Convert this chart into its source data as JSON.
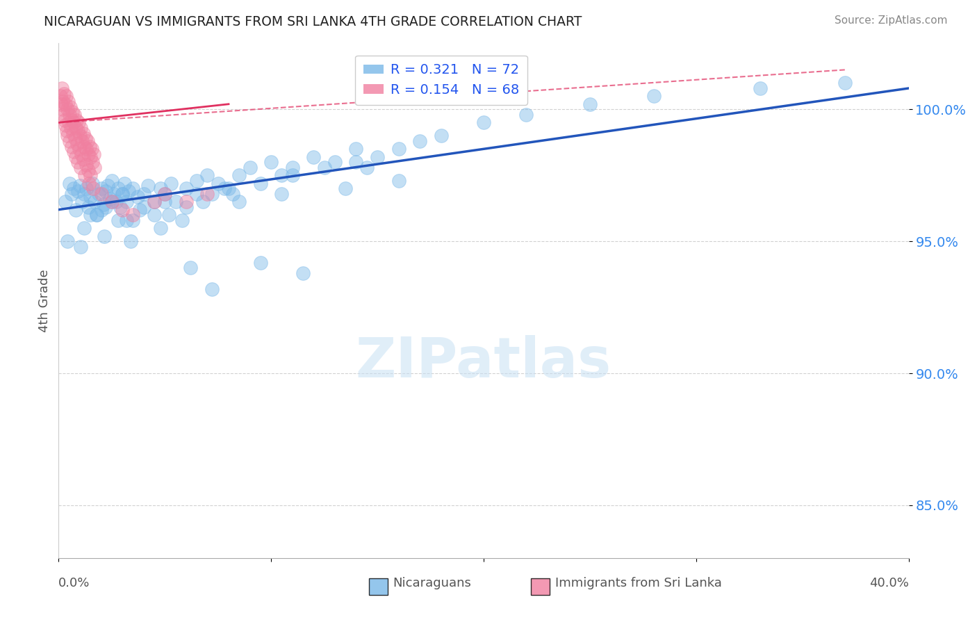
{
  "title": "NICARAGUAN VS IMMIGRANTS FROM SRI LANKA 4TH GRADE CORRELATION CHART",
  "source": "Source: ZipAtlas.com",
  "ylabel": "4th Grade",
  "xlim": [
    0.0,
    40.0
  ],
  "ylim": [
    83.0,
    102.5
  ],
  "yticks": [
    85.0,
    90.0,
    95.0,
    100.0
  ],
  "ytick_labels": [
    "85.0%",
    "90.0%",
    "95.0%",
    "100.0%"
  ],
  "blue_color": "#7ab8e8",
  "pink_color": "#f080a0",
  "blue_line_color": "#2255bb",
  "pink_line_color": "#e03060",
  "blue_scatter_x": [
    0.3,
    0.5,
    0.6,
    0.7,
    0.8,
    0.9,
    1.0,
    1.1,
    1.2,
    1.3,
    1.4,
    1.5,
    1.6,
    1.7,
    1.8,
    1.9,
    2.0,
    2.1,
    2.2,
    2.3,
    2.4,
    2.5,
    2.6,
    2.7,
    2.8,
    2.9,
    3.0,
    3.1,
    3.2,
    3.3,
    3.5,
    3.7,
    4.0,
    4.2,
    4.5,
    4.8,
    5.0,
    5.3,
    5.5,
    6.0,
    6.5,
    7.0,
    7.5,
    8.0,
    8.5,
    9.0,
    10.0,
    10.5,
    11.0,
    12.0,
    13.0,
    14.0,
    14.5,
    15.0,
    16.0,
    17.0,
    18.0,
    20.0,
    22.0,
    25.0,
    28.0,
    33.0,
    37.0,
    0.4,
    1.05,
    2.15,
    3.4,
    5.8,
    9.5,
    11.5,
    7.2,
    6.2
  ],
  "blue_scatter_y": [
    96.5,
    97.2,
    96.8,
    97.0,
    96.2,
    96.9,
    97.1,
    96.5,
    96.8,
    97.0,
    96.3,
    96.7,
    97.2,
    96.5,
    96.0,
    96.8,
    97.0,
    96.4,
    96.9,
    97.1,
    96.6,
    97.3,
    96.8,
    96.5,
    97.0,
    96.3,
    96.8,
    97.2,
    96.5,
    96.9,
    97.0,
    96.7,
    96.8,
    97.1,
    96.5,
    97.0,
    96.8,
    97.2,
    96.5,
    97.0,
    97.3,
    97.5,
    97.2,
    97.0,
    97.5,
    97.8,
    98.0,
    97.5,
    97.8,
    98.2,
    98.0,
    98.5,
    97.8,
    98.2,
    98.5,
    98.8,
    99.0,
    99.5,
    99.8,
    100.2,
    100.5,
    100.8,
    101.0,
    95.0,
    94.8,
    95.2,
    95.0,
    95.8,
    94.2,
    93.8,
    93.2,
    94.0
  ],
  "blue_scatter_x2": [
    1.5,
    2.0,
    2.5,
    3.0,
    3.5,
    4.0,
    5.0,
    6.5,
    7.8,
    9.5,
    11.0,
    12.5,
    14.0,
    1.2,
    2.8,
    4.5,
    6.0,
    8.5,
    10.5,
    13.5,
    16.0,
    3.8,
    7.2,
    5.2,
    4.8,
    3.2,
    2.2,
    1.8,
    6.8,
    8.2
  ],
  "blue_scatter_y2": [
    96.0,
    96.2,
    96.5,
    96.8,
    95.8,
    96.3,
    96.5,
    96.8,
    97.0,
    97.2,
    97.5,
    97.8,
    98.0,
    95.5,
    95.8,
    96.0,
    96.3,
    96.5,
    96.8,
    97.0,
    97.3,
    96.2,
    96.8,
    96.0,
    95.5,
    95.8,
    96.3,
    96.0,
    96.5,
    96.8
  ],
  "pink_scatter_x": [
    0.1,
    0.15,
    0.2,
    0.25,
    0.3,
    0.35,
    0.4,
    0.45,
    0.5,
    0.55,
    0.6,
    0.65,
    0.7,
    0.75,
    0.8,
    0.85,
    0.9,
    0.95,
    1.0,
    1.05,
    1.1,
    1.15,
    1.2,
    1.25,
    1.3,
    1.35,
    1.4,
    1.45,
    1.5,
    1.55,
    1.6,
    1.65,
    1.7,
    0.12,
    0.18,
    0.22,
    0.28,
    0.32,
    0.38,
    0.42,
    0.52,
    0.62,
    0.72,
    0.82,
    0.92,
    1.02,
    1.22,
    1.42,
    1.62,
    2.0,
    2.5,
    3.0,
    3.5,
    4.5,
    5.0,
    6.0,
    7.0,
    0.48,
    0.58,
    0.68,
    0.78,
    0.88,
    0.98,
    1.08,
    1.18,
    1.28,
    1.38,
    1.48
  ],
  "pink_scatter_y": [
    100.5,
    100.8,
    100.3,
    100.6,
    100.2,
    100.5,
    100.0,
    100.3,
    99.8,
    100.1,
    99.6,
    99.9,
    99.5,
    99.8,
    99.3,
    99.6,
    99.2,
    99.5,
    99.0,
    99.3,
    98.8,
    99.1,
    98.6,
    98.9,
    98.5,
    98.8,
    98.3,
    98.6,
    98.2,
    98.5,
    98.0,
    98.3,
    97.8,
    100.2,
    100.0,
    99.8,
    99.6,
    99.4,
    99.2,
    99.0,
    98.8,
    98.6,
    98.4,
    98.2,
    98.0,
    97.8,
    97.5,
    97.2,
    97.0,
    96.8,
    96.5,
    96.2,
    96.0,
    96.5,
    96.8,
    96.5,
    96.8,
    99.5,
    99.3,
    99.1,
    98.9,
    98.7,
    98.5,
    98.3,
    98.1,
    97.9,
    97.7,
    97.5
  ],
  "blue_trend_x0": 0.0,
  "blue_trend_y0": 96.2,
  "blue_trend_x1": 40.0,
  "blue_trend_y1": 100.8,
  "pink_trend_x0": 0.0,
  "pink_trend_y0": 99.5,
  "pink_trend_x1": 8.0,
  "pink_trend_y1": 100.2,
  "pink_trend_dashed_x0": 0.0,
  "pink_trend_dashed_y0": 99.5,
  "pink_trend_dashed_x1": 37.0,
  "pink_trend_dashed_y1": 101.5
}
